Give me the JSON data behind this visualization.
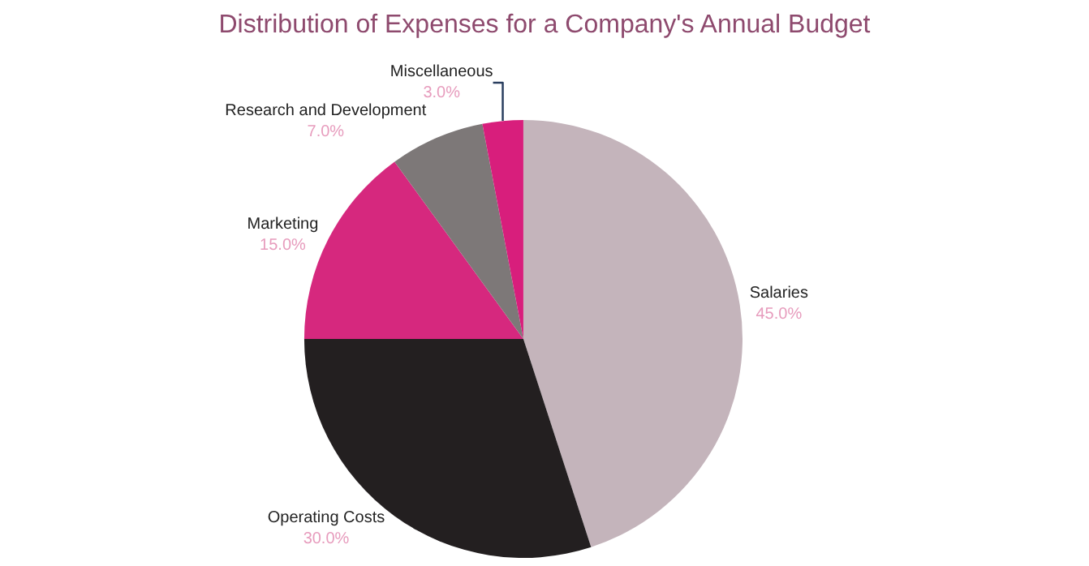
{
  "chart_data": {
    "type": "pie",
    "title": "Distribution of Expenses for a Company's Annual Budget",
    "categories": [
      "Salaries",
      "Operating Costs",
      "Marketing",
      "Research and Development",
      "Miscellaneous"
    ],
    "values": [
      45,
      30,
      15,
      7,
      3
    ],
    "value_labels": [
      "45.0%",
      "30.0%",
      "15.0%",
      "7.0%",
      "3.0%"
    ],
    "colors": [
      "#c4b4bb",
      "#231f20",
      "#d6287e",
      "#7d7878",
      "#d81e7c"
    ],
    "legend": false
  }
}
